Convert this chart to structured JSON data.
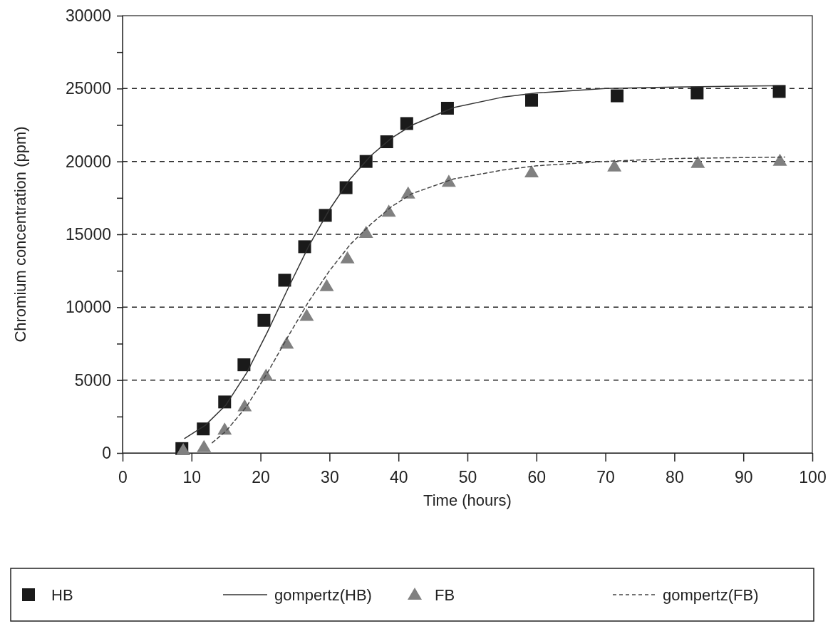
{
  "chart_data": {
    "type": "scatter",
    "xlabel": "Time (hours)",
    "ylabel": "Chromium concentration (ppm)",
    "xlim": [
      0,
      100
    ],
    "xticks": [
      0,
      10,
      20,
      30,
      40,
      50,
      60,
      70,
      80,
      90,
      100
    ],
    "ylim": [
      0,
      30000
    ],
    "yticks": [
      0,
      {
        "value": 2500,
        "label": null
      },
      5000,
      {
        "value": 7500,
        "label": null
      },
      10000,
      {
        "value": 12500,
        "label": null
      },
      15000,
      {
        "value": 17500,
        "label": null
      },
      20000,
      {
        "value": 22500,
        "label": null
      },
      25000,
      {
        "value": 27500,
        "label": null
      },
      30000
    ],
    "grid": "y",
    "legend": "bottom",
    "series": [
      {
        "name": "HB",
        "marker": "square",
        "color": "#1a1a1a",
        "x": [
          8.6,
          11.7,
          14.8,
          17.6,
          20.5,
          23.5,
          26.4,
          29.4,
          32.4,
          35.3,
          38.3,
          41.2,
          47.1,
          59.3,
          71.7,
          83.3,
          95.2
        ],
        "values": [
          300,
          1650,
          3500,
          6050,
          9100,
          11850,
          14150,
          16300,
          18200,
          20000,
          21350,
          22600,
          23650,
          24200,
          24500,
          24700,
          24800
        ]
      },
      {
        "name": "gompertz(HB)",
        "type": "line",
        "marker": "none",
        "line_style": "solid",
        "color": "#333333",
        "x": [
          9,
          12,
          15,
          18,
          21,
          24,
          27,
          30,
          33,
          36,
          39,
          42,
          48,
          55,
          60,
          70,
          80,
          96
        ],
        "values": [
          1000,
          1900,
          3300,
          5500,
          8300,
          11300,
          14200,
          16700,
          18800,
          20400,
          21600,
          22500,
          23700,
          24400,
          24700,
          25000,
          25100,
          25200
        ]
      },
      {
        "name": "FB",
        "marker": "triangle",
        "color": "#808080",
        "x": [
          8.8,
          11.8,
          14.8,
          17.7,
          20.8,
          23.8,
          26.7,
          29.6,
          32.6,
          35.3,
          38.6,
          41.4,
          47.3,
          59.3,
          71.3,
          83.4,
          95.3
        ],
        "values": [
          200,
          400,
          1600,
          3200,
          5300,
          7500,
          9400,
          11450,
          13350,
          15100,
          16550,
          17800,
          18600,
          19250,
          19650,
          19900,
          20050
        ]
      },
      {
        "name": "gompertz(FB)",
        "type": "line",
        "marker": "none",
        "line_style": "dashed",
        "color": "#444444",
        "x": [
          13,
          15,
          18,
          21,
          24,
          27,
          30,
          33,
          36,
          39,
          42,
          48,
          55,
          60,
          70,
          80,
          96
        ],
        "values": [
          700,
          1500,
          3200,
          5500,
          8000,
          10400,
          12500,
          14300,
          15700,
          16900,
          17800,
          18800,
          19400,
          19700,
          20000,
          20200,
          20300
        ]
      }
    ]
  }
}
